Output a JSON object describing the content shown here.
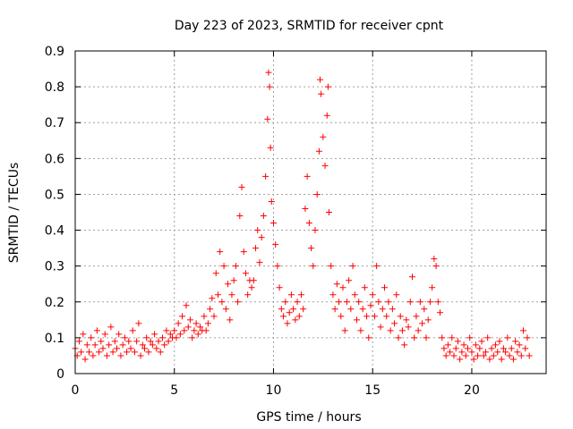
{
  "chart_data": {
    "type": "scatter",
    "title": "Day 223 of 2023, SRMTID for receiver cpnt",
    "xlabel": "GPS time / hours",
    "ylabel": "SRMTID / TECUs",
    "xlim": [
      0,
      23.75
    ],
    "ylim": [
      0,
      0.9
    ],
    "xticks": [
      0,
      5,
      10,
      15,
      20
    ],
    "xtick_labels": [
      "0",
      "5",
      "10",
      "15",
      "20"
    ],
    "yticks": [
      0,
      0.1,
      0.2,
      0.3,
      0.4,
      0.5,
      0.6,
      0.7,
      0.8,
      0.9
    ],
    "ytick_labels": [
      "0",
      "0.1",
      "0.2",
      "0.3",
      "0.4",
      "0.5",
      "0.6",
      "0.7",
      "0.8",
      "0.9"
    ],
    "grid": true,
    "marker": "+",
    "color": "#ff0000",
    "series": [
      {
        "name": "SRMTID",
        "points": [
          [
            0.0,
            0.07
          ],
          [
            0.1,
            0.05
          ],
          [
            0.2,
            0.09
          ],
          [
            0.3,
            0.06
          ],
          [
            0.4,
            0.11
          ],
          [
            0.5,
            0.04
          ],
          [
            0.6,
            0.08
          ],
          [
            0.7,
            0.06
          ],
          [
            0.8,
            0.1
          ],
          [
            0.9,
            0.05
          ],
          [
            1.0,
            0.08
          ],
          [
            1.1,
            0.12
          ],
          [
            1.2,
            0.06
          ],
          [
            1.3,
            0.09
          ],
          [
            1.4,
            0.07
          ],
          [
            1.5,
            0.11
          ],
          [
            1.6,
            0.05
          ],
          [
            1.7,
            0.08
          ],
          [
            1.8,
            0.13
          ],
          [
            1.9,
            0.06
          ],
          [
            2.0,
            0.09
          ],
          [
            2.1,
            0.07
          ],
          [
            2.2,
            0.11
          ],
          [
            2.3,
            0.05
          ],
          [
            2.4,
            0.08
          ],
          [
            2.5,
            0.1
          ],
          [
            2.6,
            0.06
          ],
          [
            2.7,
            0.09
          ],
          [
            2.8,
            0.07
          ],
          [
            2.9,
            0.12
          ],
          [
            3.0,
            0.06
          ],
          [
            3.1,
            0.09
          ],
          [
            3.2,
            0.14
          ],
          [
            3.3,
            0.05
          ],
          [
            3.4,
            0.08
          ],
          [
            3.5,
            0.07
          ],
          [
            3.6,
            0.1
          ],
          [
            3.7,
            0.06
          ],
          [
            3.8,
            0.09
          ],
          [
            3.9,
            0.08
          ],
          [
            4.0,
            0.11
          ],
          [
            4.1,
            0.07
          ],
          [
            4.2,
            0.09
          ],
          [
            4.3,
            0.06
          ],
          [
            4.4,
            0.1
          ],
          [
            4.5,
            0.08
          ],
          [
            4.6,
            0.12
          ],
          [
            4.7,
            0.09
          ],
          [
            4.8,
            0.11
          ],
          [
            4.9,
            0.1
          ],
          [
            5.0,
            0.12
          ],
          [
            5.1,
            0.1
          ],
          [
            5.2,
            0.14
          ],
          [
            5.3,
            0.11
          ],
          [
            5.4,
            0.16
          ],
          [
            5.5,
            0.12
          ],
          [
            5.6,
            0.19
          ],
          [
            5.7,
            0.13
          ],
          [
            5.8,
            0.15
          ],
          [
            5.9,
            0.1
          ],
          [
            6.0,
            0.12
          ],
          [
            6.1,
            0.14
          ],
          [
            6.2,
            0.11
          ],
          [
            6.3,
            0.13
          ],
          [
            6.4,
            0.12
          ],
          [
            6.5,
            0.16
          ],
          [
            6.6,
            0.12
          ],
          [
            6.7,
            0.14
          ],
          [
            6.8,
            0.18
          ],
          [
            6.9,
            0.21
          ],
          [
            7.0,
            0.16
          ],
          [
            7.1,
            0.28
          ],
          [
            7.2,
            0.22
          ],
          [
            7.3,
            0.34
          ],
          [
            7.4,
            0.2
          ],
          [
            7.5,
            0.3
          ],
          [
            7.6,
            0.18
          ],
          [
            7.7,
            0.25
          ],
          [
            7.8,
            0.15
          ],
          [
            7.9,
            0.22
          ],
          [
            8.0,
            0.26
          ],
          [
            8.1,
            0.3
          ],
          [
            8.2,
            0.2
          ],
          [
            8.3,
            0.44
          ],
          [
            8.4,
            0.52
          ],
          [
            8.5,
            0.34
          ],
          [
            8.6,
            0.28
          ],
          [
            8.7,
            0.22
          ],
          [
            8.8,
            0.26
          ],
          [
            8.9,
            0.24
          ],
          [
            9.0,
            0.26
          ],
          [
            9.1,
            0.35
          ],
          [
            9.2,
            0.4
          ],
          [
            9.3,
            0.31
          ],
          [
            9.4,
            0.38
          ],
          [
            9.5,
            0.44
          ],
          [
            9.6,
            0.55
          ],
          [
            9.7,
            0.71
          ],
          [
            9.75,
            0.84
          ],
          [
            9.8,
            0.8
          ],
          [
            9.85,
            0.63
          ],
          [
            9.9,
            0.48
          ],
          [
            10.0,
            0.42
          ],
          [
            10.1,
            0.36
          ],
          [
            10.2,
            0.3
          ],
          [
            10.3,
            0.24
          ],
          [
            10.4,
            0.18
          ],
          [
            10.5,
            0.16
          ],
          [
            10.6,
            0.2
          ],
          [
            10.7,
            0.14
          ],
          [
            10.8,
            0.17
          ],
          [
            10.9,
            0.22
          ],
          [
            11.0,
            0.18
          ],
          [
            11.1,
            0.15
          ],
          [
            11.2,
            0.2
          ],
          [
            11.3,
            0.16
          ],
          [
            11.4,
            0.22
          ],
          [
            11.5,
            0.18
          ],
          [
            11.6,
            0.46
          ],
          [
            11.7,
            0.55
          ],
          [
            11.8,
            0.42
          ],
          [
            11.9,
            0.35
          ],
          [
            12.0,
            0.3
          ],
          [
            12.1,
            0.4
          ],
          [
            12.2,
            0.5
          ],
          [
            12.3,
            0.62
          ],
          [
            12.35,
            0.82
          ],
          [
            12.4,
            0.78
          ],
          [
            12.5,
            0.66
          ],
          [
            12.6,
            0.58
          ],
          [
            12.7,
            0.72
          ],
          [
            12.75,
            0.8
          ],
          [
            12.8,
            0.45
          ],
          [
            12.9,
            0.3
          ],
          [
            13.0,
            0.22
          ],
          [
            13.1,
            0.18
          ],
          [
            13.2,
            0.25
          ],
          [
            13.3,
            0.2
          ],
          [
            13.4,
            0.16
          ],
          [
            13.5,
            0.24
          ],
          [
            13.6,
            0.12
          ],
          [
            13.7,
            0.2
          ],
          [
            13.8,
            0.26
          ],
          [
            13.9,
            0.18
          ],
          [
            14.0,
            0.3
          ],
          [
            14.1,
            0.22
          ],
          [
            14.2,
            0.15
          ],
          [
            14.3,
            0.2
          ],
          [
            14.4,
            0.12
          ],
          [
            14.5,
            0.18
          ],
          [
            14.6,
            0.24
          ],
          [
            14.7,
            0.16
          ],
          [
            14.8,
            0.1
          ],
          [
            14.9,
            0.19
          ],
          [
            15.0,
            0.22
          ],
          [
            15.1,
            0.16
          ],
          [
            15.2,
            0.3
          ],
          [
            15.3,
            0.2
          ],
          [
            15.4,
            0.13
          ],
          [
            15.5,
            0.18
          ],
          [
            15.6,
            0.24
          ],
          [
            15.7,
            0.16
          ],
          [
            15.8,
            0.2
          ],
          [
            15.9,
            0.12
          ],
          [
            16.0,
            0.18
          ],
          [
            16.1,
            0.14
          ],
          [
            16.2,
            0.22
          ],
          [
            16.3,
            0.1
          ],
          [
            16.4,
            0.16
          ],
          [
            16.5,
            0.12
          ],
          [
            16.6,
            0.08
          ],
          [
            16.7,
            0.15
          ],
          [
            16.8,
            0.13
          ],
          [
            16.9,
            0.2
          ],
          [
            17.0,
            0.27
          ],
          [
            17.1,
            0.1
          ],
          [
            17.2,
            0.16
          ],
          [
            17.3,
            0.12
          ],
          [
            17.4,
            0.2
          ],
          [
            17.5,
            0.14
          ],
          [
            17.6,
            0.18
          ],
          [
            17.7,
            0.1
          ],
          [
            17.8,
            0.15
          ],
          [
            17.9,
            0.2
          ],
          [
            18.0,
            0.24
          ],
          [
            18.1,
            0.32
          ],
          [
            18.2,
            0.3
          ],
          [
            18.3,
            0.2
          ],
          [
            18.4,
            0.17
          ],
          [
            18.5,
            0.1
          ],
          [
            18.6,
            0.07
          ],
          [
            18.7,
            0.05
          ],
          [
            18.8,
            0.08
          ],
          [
            18.9,
            0.06
          ],
          [
            19.0,
            0.1
          ],
          [
            19.1,
            0.05
          ],
          [
            19.2,
            0.07
          ],
          [
            19.3,
            0.09
          ],
          [
            19.4,
            0.04
          ],
          [
            19.5,
            0.06
          ],
          [
            19.6,
            0.08
          ],
          [
            19.7,
            0.05
          ],
          [
            19.8,
            0.07
          ],
          [
            19.9,
            0.1
          ],
          [
            20.0,
            0.06
          ],
          [
            20.1,
            0.04
          ],
          [
            20.2,
            0.08
          ],
          [
            20.3,
            0.05
          ],
          [
            20.4,
            0.07
          ],
          [
            20.5,
            0.09
          ],
          [
            20.6,
            0.05
          ],
          [
            20.7,
            0.06
          ],
          [
            20.8,
            0.1
          ],
          [
            20.9,
            0.04
          ],
          [
            21.0,
            0.07
          ],
          [
            21.1,
            0.05
          ],
          [
            21.2,
            0.08
          ],
          [
            21.3,
            0.06
          ],
          [
            21.4,
            0.09
          ],
          [
            21.5,
            0.04
          ],
          [
            21.6,
            0.07
          ],
          [
            21.7,
            0.06
          ],
          [
            21.8,
            0.1
          ],
          [
            21.9,
            0.05
          ],
          [
            22.0,
            0.07
          ],
          [
            22.1,
            0.04
          ],
          [
            22.2,
            0.09
          ],
          [
            22.3,
            0.06
          ],
          [
            22.4,
            0.08
          ],
          [
            22.5,
            0.05
          ],
          [
            22.6,
            0.12
          ],
          [
            22.7,
            0.07
          ],
          [
            22.8,
            0.1
          ],
          [
            22.9,
            0.05
          ]
        ]
      }
    ]
  }
}
